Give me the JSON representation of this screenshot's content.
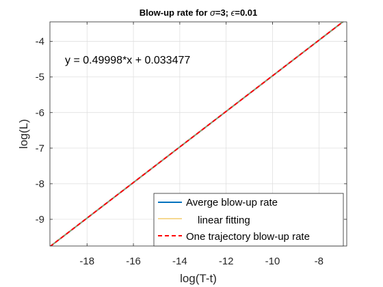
{
  "chart_data": {
    "type": "line",
    "title_prefix": "Blow-up rate for ",
    "title_sigma_symbol": "σ",
    "title_sigma_value": "=3; ",
    "title_eps_symbol": "ϵ",
    "title_eps_value": "=0.01",
    "xlabel": "log(T-t)",
    "ylabel": "log(L)",
    "xlim": [
      -19.6,
      -6.8
    ],
    "ylim": [
      -9.75,
      -3.45
    ],
    "xticks": [
      -18,
      -16,
      -14,
      -12,
      -10,
      -8
    ],
    "yticks": [
      -9,
      -8,
      -7,
      -6,
      -5,
      -4
    ],
    "xtick_labels": [
      "-18",
      "-16",
      "-14",
      "-12",
      "-10",
      "-8"
    ],
    "ytick_labels": [
      "-9",
      "-8",
      "-7",
      "-6",
      "-5",
      "-4"
    ],
    "grid": true,
    "legend_position": "bottom-right",
    "annotation": "y = 0.49998*x + 0.033477",
    "series": [
      {
        "name": "Averge blow-up rate",
        "color": "#0072BD",
        "style": "solid",
        "width": 2,
        "x": [
          -19.6,
          -6.8
        ],
        "y": [
          -9.766,
          -3.366
        ]
      },
      {
        "name": "linear fitting",
        "color": "#EDB120",
        "style": "solid",
        "width": 1,
        "x": [
          -19.6,
          -6.8
        ],
        "y": [
          -9.766,
          -3.366
        ]
      },
      {
        "name": "One trajectory blow-up rate",
        "color": "#FF0000",
        "style": "dashed",
        "width": 2,
        "x": [
          -19.6,
          -6.8
        ],
        "y": [
          -9.766,
          -3.366
        ]
      }
    ]
  }
}
